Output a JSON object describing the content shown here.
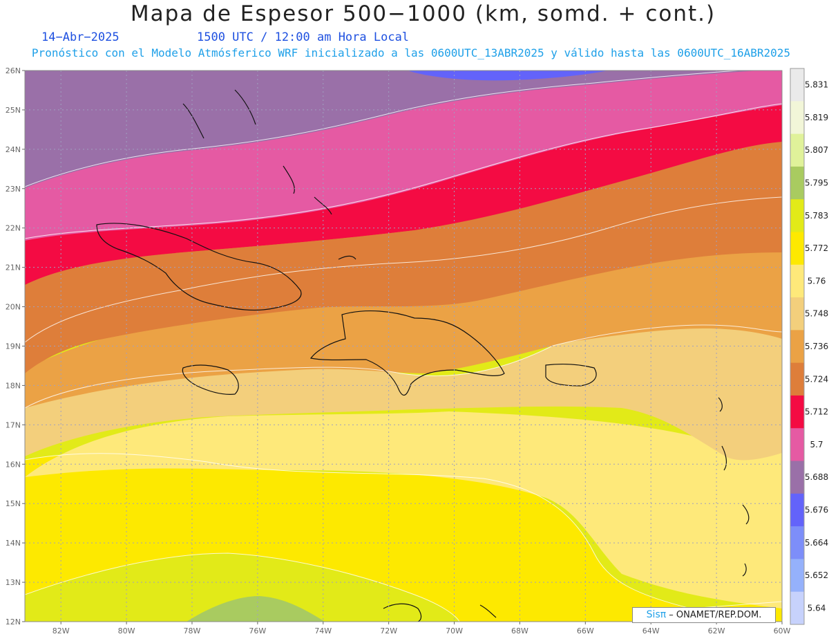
{
  "header": {
    "title": "Mapa de Espesor 500−1000 (km, somd. + cont.)",
    "date": "14−Abr−2025",
    "time": "1500 UTC / 12:00 am Hora Local",
    "forecast": "Pronóstico con el Modelo Atmósferico WRF inicializado a las 0600UTC_13ABR2025 y válido hasta las  0600UTC_16ABR2025"
  },
  "map": {
    "lat_ticks": [
      "26N",
      "25N",
      "24N",
      "23N",
      "22N",
      "21N",
      "20N",
      "19N",
      "18N",
      "17N",
      "16N",
      "15N",
      "14N",
      "13N",
      "12N"
    ],
    "lon_ticks": [
      "82W",
      "80W",
      "78W",
      "76W",
      "74W",
      "72W",
      "70W",
      "68W",
      "66W",
      "64W",
      "62W",
      "60W"
    ],
    "lat_range": [
      12,
      26
    ],
    "lon_range": [
      -83.1,
      -60.0
    ],
    "grid": true
  },
  "colorbar": {
    "labels": [
      "5.831",
      "5.819",
      "5.807",
      "5.795",
      "5.783",
      "5.772",
      "5.76",
      "5.748",
      "5.736",
      "5.724",
      "5.712",
      "5.7",
      "5.688",
      "5.676",
      "5.664",
      "5.652",
      "5.64"
    ],
    "colors_top_to_bottom": [
      "#eaeaea",
      "#f2f6d8",
      "#e0f29a",
      "#a9cb60",
      "#e2ea18",
      "#fde900",
      "#fee97a",
      "#f3cf7c",
      "#eba245",
      "#de7e3a",
      "#f40b43",
      "#e55aa3",
      "#9a70a8",
      "#6363fa",
      "#7d8ef9",
      "#95b1fb",
      "#c7d2fc"
    ]
  },
  "credit": {
    "brand": "Sisπ",
    "text": " – ONAMET/REP.DOM."
  }
}
